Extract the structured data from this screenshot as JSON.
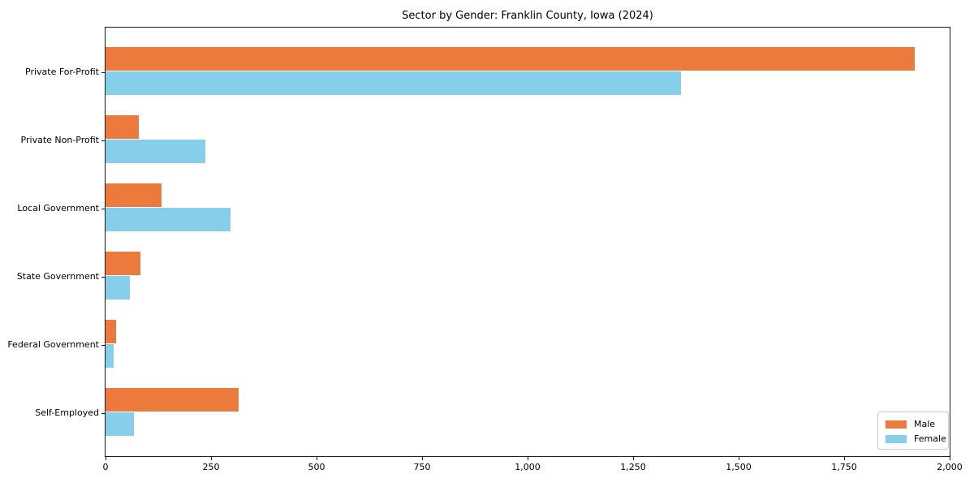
{
  "chart_data": {
    "type": "bar",
    "orientation": "horizontal",
    "title": "Sector by Gender: Franklin County, Iowa (2024)",
    "xlabel": "",
    "ylabel": "",
    "categories": [
      "Private For-Profit",
      "Private Non-Profit",
      "Local Government",
      "State Government",
      "Federal Government",
      "Self-Employed"
    ],
    "series": [
      {
        "name": "Male",
        "color": "#ec7a3c",
        "values": [
          1917,
          79,
          133,
          82,
          24,
          316
        ]
      },
      {
        "name": "Female",
        "color": "#87ceeb",
        "values": [
          1364,
          237,
          297,
          57,
          20,
          67
        ]
      }
    ],
    "xlim": [
      0,
      2000
    ],
    "x_tick_values": [
      0,
      250,
      500,
      750,
      1000,
      1250,
      1500,
      1750,
      2000
    ],
    "x_tick_labels": [
      "0",
      "250",
      "500",
      "750",
      "1,000",
      "1,250",
      "1,500",
      "1,750",
      "2,000"
    ],
    "grid": false,
    "legend_position": "lower right",
    "background": "#ffffff"
  }
}
